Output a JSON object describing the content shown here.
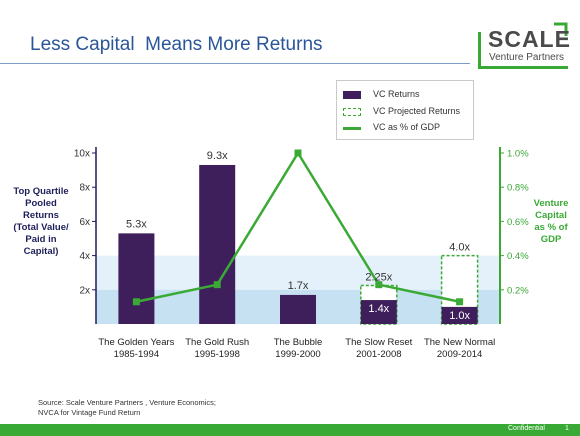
{
  "slide": {
    "title": "Less Capital  Means More Returns",
    "source": "Source: Scale Venture Partners , Venture Economics; NVCA for Vintage Fund Return",
    "footer_label": "Confidential",
    "page_number": "1"
  },
  "logo": {
    "name": "SCALE",
    "subtitle": "Venture Partners",
    "accent_color": "#39a935"
  },
  "colors": {
    "title": "#2a5598",
    "bar": "#3e1f5c",
    "line": "#3aaa35",
    "projected_border": "#3aaa35",
    "band_light": "#e4f1fa",
    "band_dark": "#c6e1f2",
    "left_axis": "#1e1f5a",
    "right_axis": "#3aaa35"
  },
  "chart_data": {
    "type": "bar",
    "categories": [
      [
        "The Golden Years",
        "1985-1994"
      ],
      [
        "The Gold Rush",
        "1995-1998"
      ],
      [
        "The Bubble",
        "1999-2000"
      ],
      [
        "The Slow Reset",
        "2001-2008"
      ],
      [
        "The New Normal",
        "2009-2014"
      ]
    ],
    "y_axis": {
      "label": [
        "Top Quartile",
        "Pooled",
        "Returns",
        "(Total Value/",
        "Paid in",
        "Capital)"
      ],
      "ticks": [
        "2x",
        "4x",
        "6x",
        "8x",
        "10x"
      ],
      "tick_values": [
        2,
        4,
        6,
        8,
        10
      ],
      "ylim": [
        0,
        10
      ]
    },
    "y2_axis": {
      "label": [
        "Venture",
        "Capital",
        "as % of",
        "GDP"
      ],
      "ticks": [
        "0.2%",
        "0.4%",
        "0.6%",
        "0.8%",
        "1.0%"
      ],
      "tick_values": [
        0.2,
        0.4,
        0.6,
        0.8,
        1.0
      ],
      "ylim": [
        0,
        1.0
      ]
    },
    "series": [
      {
        "name": "VC Returns",
        "kind": "bar",
        "values": [
          5.3,
          9.3,
          1.7,
          1.4,
          1.0
        ],
        "labels": [
          "5.3x",
          "9.3x",
          "1.7x",
          "1.4x",
          "1.0x"
        ]
      },
      {
        "name": "VC Projected Returns",
        "kind": "bar-dashed",
        "values": [
          null,
          null,
          null,
          2.25,
          4.0
        ],
        "labels": [
          "",
          "",
          "",
          "2.25x",
          "4.0x"
        ]
      },
      {
        "name": "VC as % of GDP",
        "kind": "line",
        "axis": "y2",
        "values": [
          0.13,
          0.23,
          1.0,
          0.23,
          0.13
        ]
      }
    ],
    "grid": false,
    "legend_position": "top-right"
  }
}
